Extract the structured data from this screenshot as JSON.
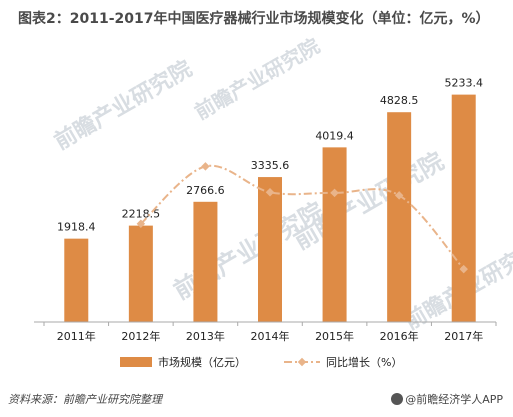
{
  "title": "图表2：2011-2017年中国医疗器械行业市场规模变化（单位：亿元，%）",
  "source": "资料来源：前瞻产业研究院整理",
  "brand": "@前瞻经济学人APP",
  "watermark": "前瞻产业研究院",
  "colors": {
    "bar": "#de8b45",
    "line": "#e9b48a",
    "axis": "#aaaaaa"
  },
  "chart_data": {
    "type": "bar",
    "categories": [
      "2011年",
      "2012年",
      "2013年",
      "2014年",
      "2015年",
      "2016年",
      "2017年"
    ],
    "ylim": [
      0,
      5800
    ],
    "y2lim": [
      0,
      40
    ],
    "series": [
      {
        "name": "市场规模（亿元）",
        "type": "bar",
        "values": [
          1918.4,
          2218.5,
          2766.6,
          3335.6,
          4019.4,
          4828.5,
          5233.4
        ],
        "labels": [
          "1918.4",
          "2218.5",
          "2766.6",
          "3335.6",
          "4019.4",
          "4828.5",
          "5233.4"
        ]
      },
      {
        "name": "同比增长（%）",
        "type": "line",
        "axis": "secondary",
        "values": [
          null,
          15.6,
          24.7,
          20.6,
          20.5,
          20.1,
          8.4
        ]
      }
    ]
  }
}
